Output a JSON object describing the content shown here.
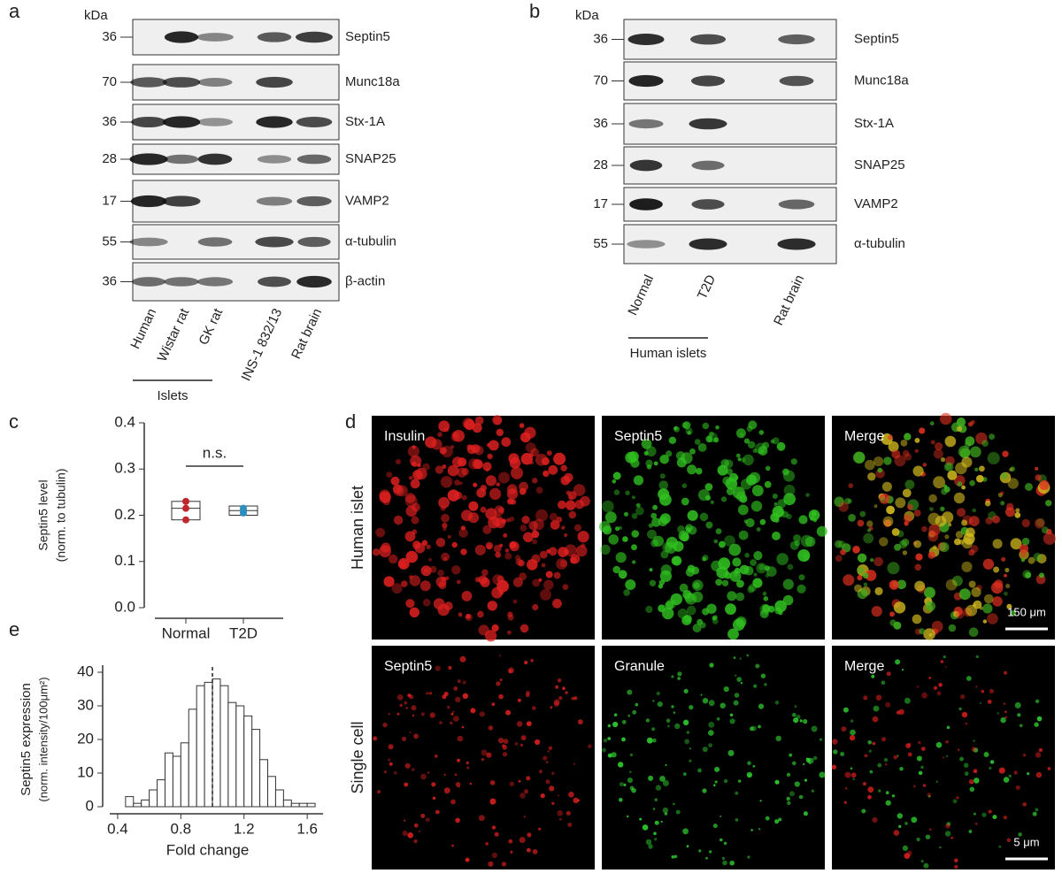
{
  "panel_labels": [
    "a",
    "b",
    "c",
    "d",
    "e"
  ],
  "blot_a": {
    "unit": "kDa",
    "rows": [
      {
        "marker": "36",
        "protein": "Septin5"
      },
      {
        "marker": "70",
        "protein": "Munc18a"
      },
      {
        "marker": "36",
        "protein": "Stx-1A"
      },
      {
        "marker": "28",
        "protein": "SNAP25"
      },
      {
        "marker": "17",
        "protein": "VAMP2"
      },
      {
        "marker": "55",
        "protein": "α-tubulin"
      },
      {
        "marker": "36",
        "protein": "β-actin"
      }
    ],
    "lanes": [
      "Human",
      "Wistar rat",
      "GK rat",
      "INS-1 832/13",
      "Rat brain"
    ],
    "group_label": "Islets"
  },
  "blot_b": {
    "unit": "kDa",
    "rows": [
      {
        "marker": "36",
        "protein": "Septin5"
      },
      {
        "marker": "70",
        "protein": "Munc18a"
      },
      {
        "marker": "36",
        "protein": "Stx-1A"
      },
      {
        "marker": "28",
        "protein": "SNAP25"
      },
      {
        "marker": "17",
        "protein": "VAMP2"
      },
      {
        "marker": "55",
        "protein": "α-tubulin"
      }
    ],
    "lanes": [
      "Normal",
      "T2D",
      "Rat brain"
    ],
    "group_label": "Human islets"
  },
  "microscopy": {
    "rows": [
      "Human islet",
      "Single cell"
    ],
    "images": [
      [
        "Insulin",
        "Septin5",
        "Merge"
      ],
      [
        "Septin5",
        "Granule",
        "Merge"
      ]
    ],
    "scale_bars": [
      "150 μm",
      "5 μm"
    ]
  },
  "chart_data": [
    {
      "type": "box",
      "ylabel": [
        "Septin5 level",
        "(norm. to tubulin)"
      ],
      "annotation": "n.s.",
      "categories": [
        "Normal",
        "T2D"
      ],
      "boxes": [
        {
          "low": 0.19,
          "mid": 0.215,
          "high": 0.23,
          "points": [
            0.23,
            0.215,
            0.19
          ],
          "color": "#c0272d"
        },
        {
          "low": 0.2,
          "mid": 0.21,
          "high": 0.22,
          "points": [
            0.215,
            0.21,
            0.205
          ],
          "color": "#2a8fbd"
        }
      ],
      "ylim": [
        0,
        0.4
      ],
      "yticks": [
        {
          "value": 0,
          "label": "0.0"
        },
        0.1,
        0.2,
        0.3,
        0.4
      ]
    },
    {
      "type": "histogram",
      "xlabel": "Fold change",
      "ylabel": [
        "Septin5 expression",
        "(norm. intensity/100μm²)"
      ],
      "bins": [
        0.45,
        0.5,
        0.55,
        0.6,
        0.65,
        0.7,
        0.75,
        0.8,
        0.85,
        0.9,
        0.95,
        1.0,
        1.05,
        1.1,
        1.15,
        1.2,
        1.25,
        1.3,
        1.35,
        1.4,
        1.45,
        1.5,
        1.55,
        1.6,
        1.65
      ],
      "counts": [
        3,
        1,
        2,
        5,
        8,
        16,
        15,
        19,
        29,
        36,
        37,
        38,
        36,
        31,
        30,
        27,
        23,
        14,
        9,
        5,
        2,
        1,
        1,
        1
      ],
      "reference_line": 1.0,
      "color": "#ffffff",
      "xlim": [
        0.35,
        1.7
      ],
      "xticks": [
        0.4,
        0.8,
        1.2,
        1.6
      ],
      "ylim": [
        0,
        40
      ],
      "yticks": [
        0,
        10,
        20,
        30,
        40
      ]
    }
  ]
}
